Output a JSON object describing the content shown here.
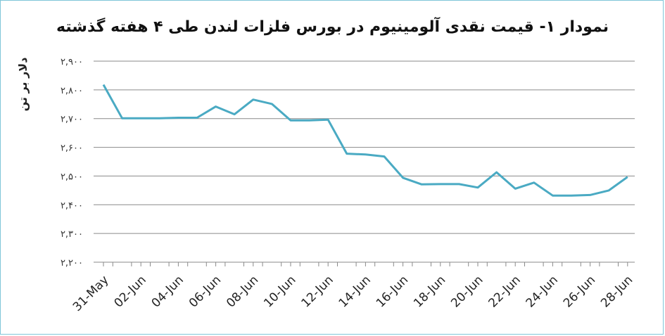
{
  "chart_data": {
    "type": "line",
    "title": "نمودار ۱- قیمت نقدی آلومینیوم در بورس فلزات لندن طی ۴ هفته گذشته",
    "ylabel": "دلار بر تن",
    "xlabel": "",
    "ylim": [
      2200,
      2900
    ],
    "yticks": [
      2200,
      2300,
      2400,
      2500,
      2600,
      2700,
      2800,
      2900
    ],
    "ytick_labels": [
      "۲,۲۰۰",
      "۲,۳۰۰",
      "۲,۴۰۰",
      "۲,۵۰۰",
      "۲,۶۰۰",
      "۲,۷۰۰",
      "۲,۸۰۰",
      "۲,۹۰۰"
    ],
    "x_tick_labels": [
      "31-May",
      "02-Jun",
      "04-Jun",
      "06-Jun",
      "08-Jun",
      "10-Jun",
      "12-Jun",
      "14-Jun",
      "16-Jun",
      "18-Jun",
      "20-Jun",
      "22-Jun",
      "24-Jun",
      "26-Jun",
      "28-Jun"
    ],
    "grid": true,
    "color": "#4aaac3",
    "series": [
      {
        "x": [
          "31-May",
          "01-Jun",
          "02-Jun",
          "03-Jun",
          "04-Jun",
          "05-Jun",
          "06-Jun",
          "07-Jun",
          "08-Jun",
          "09-Jun",
          "10-Jun",
          "11-Jun",
          "12-Jun",
          "13-Jun",
          "14-Jun",
          "15-Jun",
          "16-Jun",
          "17-Jun",
          "18-Jun",
          "19-Jun",
          "20-Jun",
          "21-Jun",
          "22-Jun",
          "23-Jun",
          "24-Jun",
          "25-Jun",
          "26-Jun",
          "27-Jun",
          "28-Jun"
        ],
        "values": [
          2818,
          2701,
          2701,
          2701,
          2703,
          2703,
          2742,
          2715,
          2766,
          2751,
          2694,
          2694,
          2696,
          2578,
          2575,
          2568,
          2494,
          2471,
          2472,
          2472,
          2460,
          2513,
          2456,
          2477,
          2432,
          2432,
          2434,
          2450,
          2497
        ]
      }
    ]
  }
}
